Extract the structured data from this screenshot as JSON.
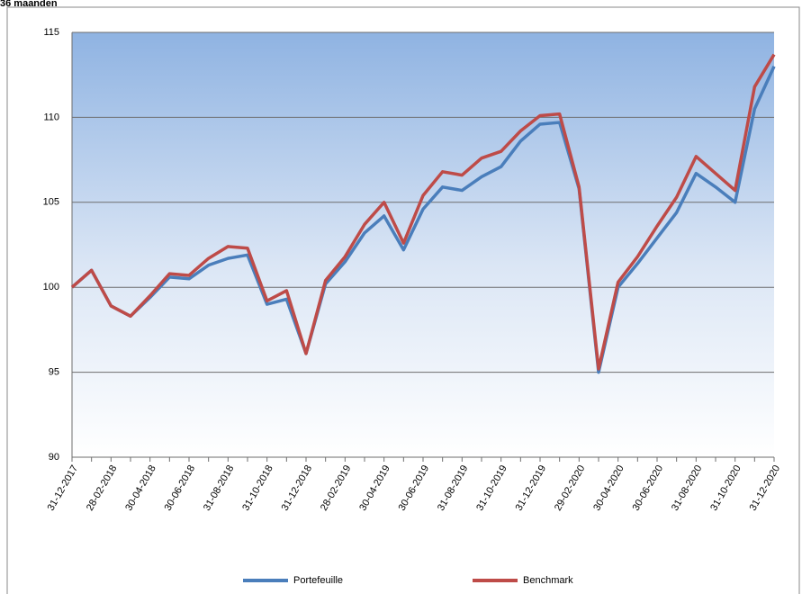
{
  "chart_data": {
    "type": "line",
    "title": "36 maanden",
    "categories": [
      "31-12-2017",
      null,
      "28-02-2018",
      null,
      "30-04-2018",
      null,
      "30-06-2018",
      null,
      "31-08-2018",
      null,
      "31-10-2018",
      null,
      "31-12-2018",
      null,
      "28-02-2019",
      null,
      "30-04-2019",
      null,
      "30-06-2019",
      null,
      "31-08-2019",
      null,
      "31-10-2019",
      null,
      "31-12-2019",
      null,
      "29-02-2020",
      null,
      "30-04-2020",
      null,
      "30-06-2020",
      null,
      "31-08-2020",
      null,
      "31-10-2020",
      null,
      "31-12-2020"
    ],
    "series": [
      {
        "name": "Portefeuille",
        "color": "#4a7ebb",
        "values": [
          100,
          101.0,
          98.9,
          98.3,
          99.4,
          100.6,
          100.5,
          101.3,
          101.7,
          101.9,
          99.0,
          99.3,
          96.1,
          100.2,
          101.5,
          103.2,
          104.2,
          102.2,
          104.6,
          105.9,
          105.7,
          106.5,
          107.1,
          108.6,
          109.6,
          109.7,
          105.8,
          95.0,
          100.0,
          101.4,
          102.9,
          104.4,
          106.7,
          105.9,
          105.0,
          110.5,
          113.0
        ]
      },
      {
        "name": "Benchmark",
        "color": "#be4b48",
        "values": [
          100,
          101.0,
          98.9,
          98.3,
          99.5,
          100.8,
          100.7,
          101.7,
          102.4,
          102.3,
          99.2,
          99.8,
          96.1,
          100.4,
          101.8,
          103.7,
          105.0,
          102.6,
          105.4,
          106.8,
          106.6,
          107.6,
          108.0,
          109.2,
          110.1,
          110.2,
          105.9,
          95.2,
          100.3,
          101.8,
          103.6,
          105.3,
          107.7,
          106.7,
          105.7,
          111.8,
          113.7
        ]
      }
    ],
    "ylim": [
      90,
      115
    ],
    "yticks": [
      90,
      95,
      100,
      105,
      110,
      115
    ],
    "grid": true,
    "legend": "bottom"
  }
}
